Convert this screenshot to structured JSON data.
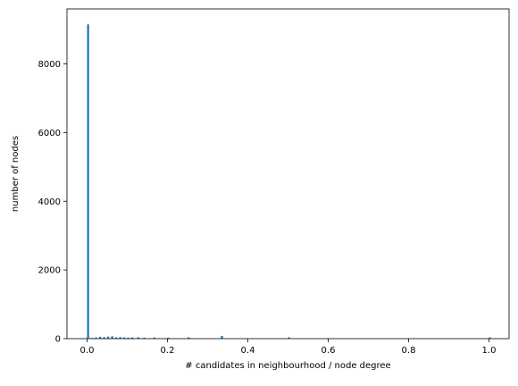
{
  "chart_data": {
    "type": "bar",
    "title": "",
    "xlabel": "# candidates in neighbourhood / node degree",
    "ylabel": "number of nodes",
    "xlim": [
      -0.05,
      1.05
    ],
    "ylim": [
      0,
      9600
    ],
    "xticks": [
      0.0,
      0.2,
      0.4,
      0.6,
      0.8,
      1.0
    ],
    "xtick_labels": [
      "0.0",
      "0.2",
      "0.4",
      "0.6",
      "0.8",
      "1.0"
    ],
    "yticks": [
      0,
      2000,
      4000,
      6000,
      8000
    ],
    "ytick_labels": [
      "0",
      "2000",
      "4000",
      "6000",
      "8000"
    ],
    "bin_width": 0.005,
    "grid": false,
    "color": "#1f77b4",
    "bins": [
      {
        "x": 0.0,
        "count": 9150
      },
      {
        "x": 0.01,
        "count": 20
      },
      {
        "x": 0.02,
        "count": 35
      },
      {
        "x": 0.03,
        "count": 55
      },
      {
        "x": 0.04,
        "count": 45
      },
      {
        "x": 0.05,
        "count": 60
      },
      {
        "x": 0.06,
        "count": 70
      },
      {
        "x": 0.07,
        "count": 40
      },
      {
        "x": 0.08,
        "count": 45
      },
      {
        "x": 0.09,
        "count": 35
      },
      {
        "x": 0.1,
        "count": 30
      },
      {
        "x": 0.11,
        "count": 35
      },
      {
        "x": 0.125,
        "count": 40
      },
      {
        "x": 0.14,
        "count": 30
      },
      {
        "x": 0.165,
        "count": 35
      },
      {
        "x": 0.2,
        "count": 30
      },
      {
        "x": 0.25,
        "count": 40
      },
      {
        "x": 0.333,
        "count": 80
      },
      {
        "x": 0.5,
        "count": 40
      },
      {
        "x": 1.0,
        "count": 35
      }
    ]
  }
}
